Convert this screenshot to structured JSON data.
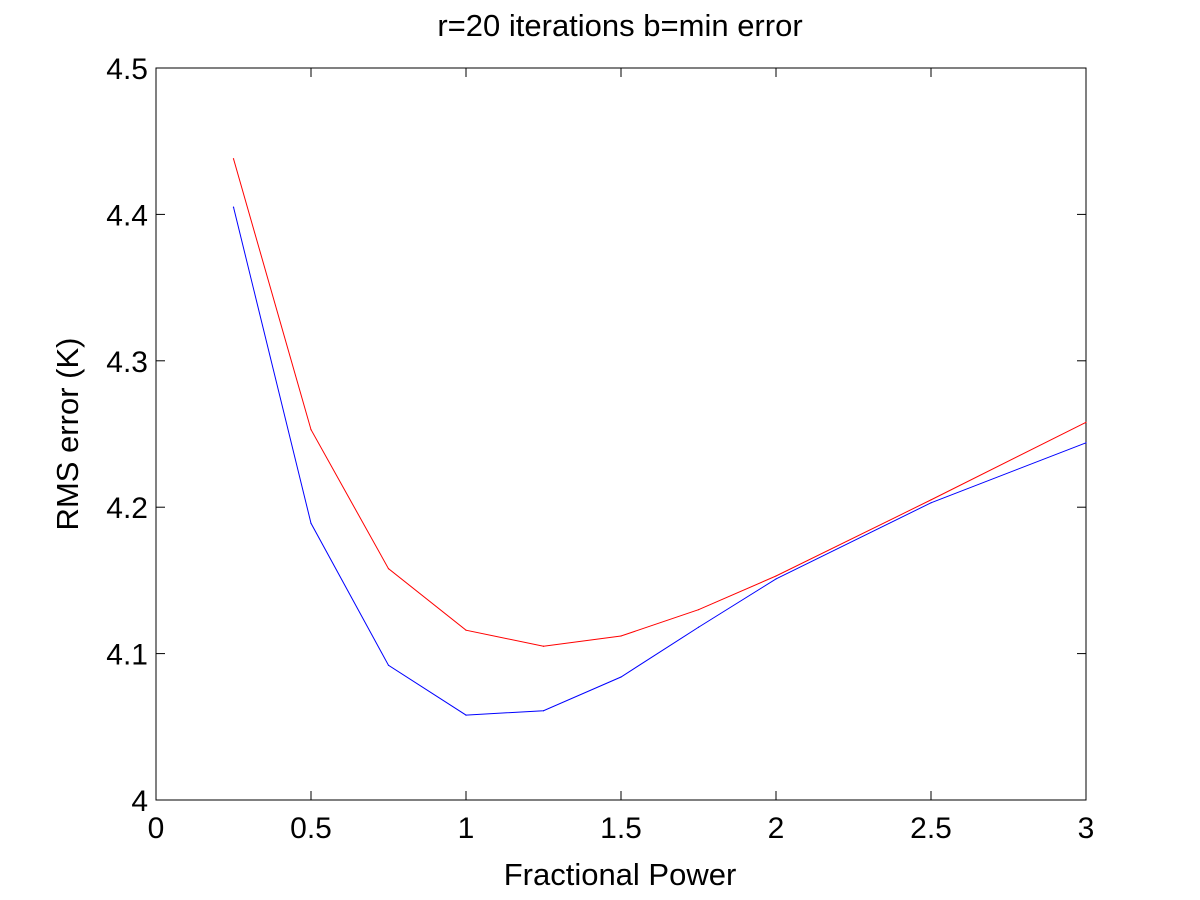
{
  "chart_data": {
    "type": "line",
    "title": "r=20 iterations  b=min error",
    "xlabel": "Fractional Power",
    "ylabel": "RMS error (K)",
    "xlim": [
      0,
      3
    ],
    "ylim": [
      4,
      4.5
    ],
    "grid": false,
    "xticks": [
      "0",
      "0.5",
      "1",
      "1.5",
      "2",
      "2.5",
      "3"
    ],
    "yticks": [
      "4",
      "4.1",
      "4.2",
      "4.3",
      "4.4",
      "4.5"
    ],
    "series": [
      {
        "name": "r",
        "color": "#ff0000",
        "x": [
          0.25,
          0.5,
          0.75,
          1.0,
          1.25,
          1.5,
          1.75,
          2.0,
          2.5,
          3.0
        ],
        "y": [
          4.438,
          4.253,
          4.158,
          4.116,
          4.105,
          4.112,
          4.13,
          4.153,
          4.205,
          4.258
        ]
      },
      {
        "name": "b",
        "color": "#0000ff",
        "x": [
          0.25,
          0.5,
          0.75,
          1.0,
          1.25,
          1.5,
          1.75,
          2.0,
          2.5,
          3.0
        ],
        "y": [
          4.405,
          4.189,
          4.092,
          4.058,
          4.061,
          4.084,
          4.118,
          4.151,
          4.203,
          4.244
        ]
      }
    ]
  }
}
